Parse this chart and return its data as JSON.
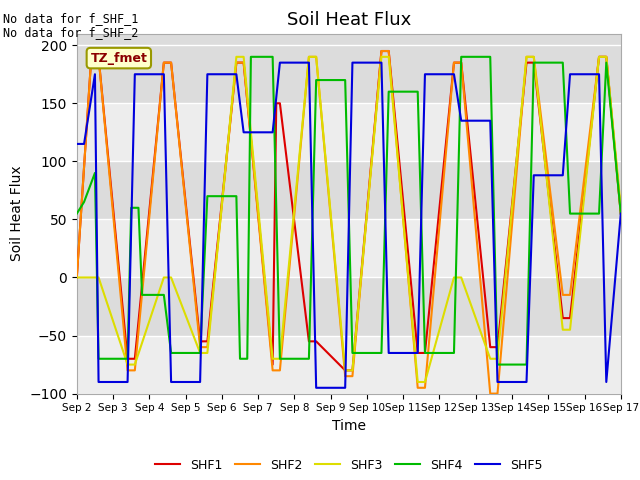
{
  "title": "Soil Heat Flux",
  "xlabel": "Time",
  "ylabel": "Soil Heat Flux",
  "ylim": [
    -100,
    210
  ],
  "yticks": [
    -100,
    -50,
    0,
    50,
    100,
    150,
    200
  ],
  "bg_color": "#dcdcdc",
  "text_lines": [
    "No data for f_SHF_1",
    "No data for f_SHF_2"
  ],
  "legend_label": "TZ_fmet",
  "series_colors": {
    "SHF1": "#dd0000",
    "SHF2": "#ff8800",
    "SHF3": "#dddd00",
    "SHF4": "#00bb00",
    "SHF5": "#0000dd"
  },
  "x_tick_labels": [
    "Sep 2",
    "Sep 3",
    "Sep 4",
    "Sep 5",
    "Sep 6",
    "Sep 7",
    "Sep 8",
    "Sep 9",
    "Sep 10",
    "Sep 11",
    "Sep 12",
    "Sep 13",
    "Sep 14",
    "Sep 15",
    "Sep 16",
    "Sep 17"
  ],
  "shf1_x": [
    0,
    0.4,
    0.6,
    1.4,
    1.6,
    2.4,
    2.6,
    3.4,
    3.6,
    4.4,
    4.6,
    5.4,
    5.5,
    5.6,
    6.4,
    6.6,
    7.4,
    7.6,
    8.4,
    8.6,
    9.4,
    9.6,
    10.4,
    10.6,
    11.4,
    11.6,
    12.4,
    12.6,
    13.4,
    13.6,
    14.4,
    14.6,
    15
  ],
  "shf1_y": [
    0,
    190,
    190,
    -70,
    -70,
    185,
    185,
    -55,
    -55,
    185,
    185,
    -75,
    150,
    150,
    -55,
    -55,
    -80,
    -80,
    195,
    195,
    -65,
    -65,
    185,
    185,
    -60,
    -60,
    185,
    185,
    -35,
    -35,
    190,
    190,
    55
  ],
  "shf2_x": [
    0,
    0.4,
    0.6,
    1.4,
    1.6,
    2.4,
    2.6,
    3.4,
    3.6,
    4.4,
    4.6,
    5.4,
    5.6,
    6.4,
    6.6,
    7.4,
    7.6,
    8.4,
    8.6,
    9.4,
    9.6,
    10.4,
    10.6,
    11.4,
    11.6,
    12.4,
    12.6,
    13.4,
    13.6,
    14.4,
    14.6,
    15
  ],
  "shf2_y": [
    0,
    190,
    190,
    -80,
    -80,
    185,
    185,
    -60,
    -60,
    185,
    185,
    -80,
    -80,
    190,
    190,
    -85,
    -85,
    195,
    195,
    -95,
    -95,
    185,
    185,
    -100,
    -100,
    190,
    190,
    -15,
    -15,
    190,
    190,
    55
  ],
  "shf3_x": [
    0,
    0.4,
    0.6,
    1.4,
    1.6,
    2.4,
    2.6,
    3.4,
    3.6,
    4.4,
    4.6,
    5.4,
    5.6,
    6.4,
    6.6,
    7.4,
    7.6,
    8.4,
    8.6,
    9.4,
    9.6,
    10.4,
    10.6,
    11.4,
    11.6,
    12.4,
    12.6,
    13.4,
    13.6,
    14.4,
    14.6,
    15
  ],
  "shf3_y": [
    0,
    0,
    0,
    -75,
    -75,
    0,
    0,
    -65,
    -65,
    190,
    190,
    -70,
    -70,
    190,
    190,
    -80,
    -80,
    190,
    190,
    -90,
    -90,
    0,
    0,
    -70,
    -70,
    190,
    190,
    -45,
    -45,
    190,
    190,
    60
  ],
  "shf4_x": [
    0,
    0.2,
    0.5,
    0.6,
    1.4,
    1.5,
    1.7,
    1.8,
    2.4,
    2.6,
    3.4,
    3.6,
    4.4,
    4.5,
    4.7,
    4.8,
    5.4,
    5.6,
    6.4,
    6.6,
    7.4,
    7.6,
    8.4,
    8.6,
    9.4,
    9.6,
    10.4,
    10.6,
    11.4,
    11.6,
    12.4,
    12.6,
    13.4,
    13.6,
    14.4,
    14.6,
    15
  ],
  "shf4_y": [
    55,
    65,
    90,
    -70,
    -70,
    60,
    60,
    -15,
    -15,
    -65,
    -65,
    70,
    70,
    -70,
    -70,
    190,
    190,
    -70,
    -70,
    170,
    170,
    -65,
    -65,
    160,
    160,
    -65,
    -65,
    190,
    190,
    -75,
    -75,
    185,
    185,
    55,
    55,
    185,
    55
  ],
  "shf5_x": [
    0,
    0.2,
    0.5,
    0.6,
    1.4,
    1.6,
    2.4,
    2.6,
    3.4,
    3.6,
    4.4,
    4.6,
    5.4,
    5.6,
    6.4,
    6.6,
    7.4,
    7.6,
    8.4,
    8.6,
    9.4,
    9.6,
    10.4,
    10.6,
    11.4,
    11.6,
    12.4,
    12.6,
    13.4,
    13.6,
    14.4,
    14.6,
    15
  ],
  "shf5_y": [
    115,
    115,
    175,
    -90,
    -90,
    175,
    175,
    -90,
    -90,
    175,
    175,
    125,
    125,
    185,
    185,
    -95,
    -95,
    185,
    185,
    -65,
    -65,
    175,
    175,
    135,
    135,
    -90,
    -90,
    88,
    88,
    175,
    175,
    -90,
    55
  ]
}
